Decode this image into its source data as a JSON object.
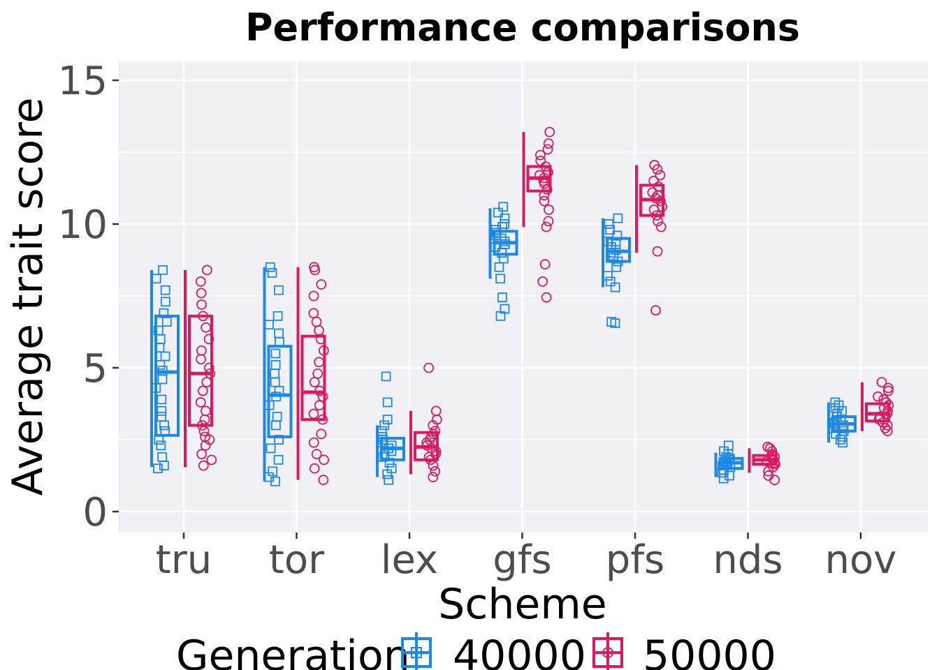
{
  "chart_data": {
    "type": "box",
    "title": "Performance comparisons",
    "xlabel": "Scheme",
    "ylabel": "Average trait score",
    "categories": [
      "tru",
      "tor",
      "lex",
      "gfs",
      "pfs",
      "nds",
      "nov"
    ],
    "ylim": [
      -0.7,
      15.8
    ],
    "yticks": [
      0,
      5,
      10,
      15
    ],
    "grid": true,
    "legend": {
      "title": "Generation",
      "position": "bottom",
      "entries": [
        "40000",
        "50000"
      ]
    },
    "series": [
      {
        "name": "40000",
        "color": "#1e88e5",
        "marker": "square",
        "boxes": [
          {
            "min": 1.55,
            "q1": 2.65,
            "median": 4.85,
            "q3": 6.8,
            "max": 8.4
          },
          {
            "min": 1.05,
            "q1": 2.6,
            "median": 4.05,
            "q3": 5.75,
            "max": 8.5
          },
          {
            "min": 1.2,
            "q1": 1.8,
            "median": 2.2,
            "q3": 2.55,
            "max": 3.0
          },
          {
            "min": 8.1,
            "q1": 8.95,
            "median": 9.35,
            "q3": 9.75,
            "max": 10.55
          },
          {
            "min": 7.8,
            "q1": 8.7,
            "median": 9.05,
            "q3": 9.5,
            "max": 10.2
          },
          {
            "min": 1.2,
            "q1": 1.5,
            "median": 1.7,
            "q3": 1.85,
            "max": 2.05
          },
          {
            "min": 2.4,
            "q1": 2.8,
            "median": 3.05,
            "q3": 3.3,
            "max": 3.8
          }
        ],
        "points": [
          [
            1.5,
            1.6,
            1.9,
            2.3,
            2.5,
            2.8,
            3.0,
            3.3,
            3.5,
            3.9,
            4.3,
            4.6,
            4.9,
            5.1,
            5.4,
            5.7,
            6.0,
            6.3,
            6.6,
            6.9,
            7.3,
            7.7,
            8.1,
            8.4
          ],
          [
            1.05,
            1.2,
            1.4,
            1.8,
            2.2,
            2.5,
            3.0,
            3.3,
            3.7,
            4.0,
            4.2,
            4.5,
            4.8,
            5.1,
            5.5,
            5.9,
            6.2,
            6.5,
            6.8,
            7.7,
            8.3,
            8.5
          ],
          [
            1.1,
            1.3,
            1.5,
            1.7,
            1.9,
            2.0,
            2.1,
            2.2,
            2.3,
            2.4,
            2.5,
            2.6,
            2.8,
            3.0,
            3.2,
            3.8,
            4.7
          ],
          [
            6.8,
            7.05,
            7.45,
            8.1,
            8.5,
            8.8,
            9.0,
            9.2,
            9.3,
            9.4,
            9.5,
            9.6,
            9.7,
            9.8,
            9.9,
            10.0,
            10.2,
            10.4,
            10.6
          ],
          [
            6.55,
            6.6,
            7.8,
            8.0,
            8.2,
            8.5,
            8.7,
            8.9,
            9.0,
            9.1,
            9.2,
            9.3,
            9.4,
            9.6,
            9.8,
            10.0,
            10.2
          ],
          [
            1.15,
            1.25,
            1.35,
            1.45,
            1.55,
            1.6,
            1.65,
            1.7,
            1.75,
            1.8,
            1.85,
            1.9,
            2.0,
            2.1,
            2.3
          ],
          [
            2.4,
            2.5,
            2.6,
            2.7,
            2.8,
            2.9,
            3.0,
            3.05,
            3.1,
            3.2,
            3.3,
            3.4,
            3.5,
            3.6,
            3.7,
            3.8
          ]
        ]
      },
      {
        "name": "50000",
        "color": "#d81b60",
        "marker": "circle",
        "boxes": [
          {
            "min": 1.55,
            "q1": 3.0,
            "median": 4.8,
            "q3": 6.8,
            "max": 8.4
          },
          {
            "min": 1.1,
            "q1": 3.2,
            "median": 4.15,
            "q3": 6.1,
            "max": 8.5
          },
          {
            "min": 1.3,
            "q1": 1.8,
            "median": 2.25,
            "q3": 2.75,
            "max": 3.5
          },
          {
            "min": 9.9,
            "q1": 11.15,
            "median": 11.6,
            "q3": 12.0,
            "max": 13.2
          },
          {
            "min": 9.0,
            "q1": 10.3,
            "median": 10.85,
            "q3": 11.35,
            "max": 12.05
          },
          {
            "min": 1.35,
            "q1": 1.65,
            "median": 1.8,
            "q3": 1.95,
            "max": 2.2
          },
          {
            "min": 2.8,
            "q1": 3.15,
            "median": 3.4,
            "q3": 3.75,
            "max": 4.5
          }
        ],
        "points": [
          [
            1.6,
            1.8,
            2.0,
            2.3,
            2.5,
            2.6,
            2.8,
            3.0,
            3.2,
            3.5,
            3.8,
            4.2,
            4.5,
            4.8,
            5.0,
            5.3,
            5.6,
            6.0,
            6.4,
            6.8,
            7.2,
            7.6,
            8.0,
            8.4
          ],
          [
            1.1,
            1.5,
            1.8,
            2.0,
            2.4,
            2.7,
            3.2,
            3.4,
            3.7,
            4.0,
            4.2,
            4.5,
            4.8,
            5.2,
            5.6,
            6.0,
            6.3,
            6.6,
            6.9,
            7.5,
            7.9,
            8.4,
            8.5
          ],
          [
            1.2,
            1.4,
            1.6,
            1.8,
            1.9,
            2.0,
            2.1,
            2.2,
            2.3,
            2.4,
            2.5,
            2.6,
            2.7,
            2.8,
            3.0,
            3.2,
            3.5,
            5.0
          ],
          [
            7.45,
            8.0,
            8.6,
            9.9,
            10.1,
            10.5,
            10.8,
            11.0,
            11.2,
            11.4,
            11.5,
            11.6,
            11.7,
            11.8,
            12.0,
            12.2,
            12.4,
            12.6,
            12.8,
            13.2
          ],
          [
            7.0,
            9.05,
            9.9,
            10.1,
            10.3,
            10.5,
            10.6,
            10.8,
            10.9,
            11.0,
            11.1,
            11.3,
            11.5,
            11.7,
            11.9,
            12.05
          ],
          [
            1.1,
            1.25,
            1.4,
            1.55,
            1.65,
            1.7,
            1.75,
            1.8,
            1.85,
            1.9,
            1.95,
            2.0,
            2.1,
            2.2,
            2.25
          ],
          [
            2.8,
            2.9,
            3.0,
            3.1,
            3.2,
            3.3,
            3.4,
            3.5,
            3.6,
            3.7,
            3.8,
            3.9,
            4.0,
            4.2,
            4.3,
            4.5
          ]
        ]
      }
    ]
  }
}
